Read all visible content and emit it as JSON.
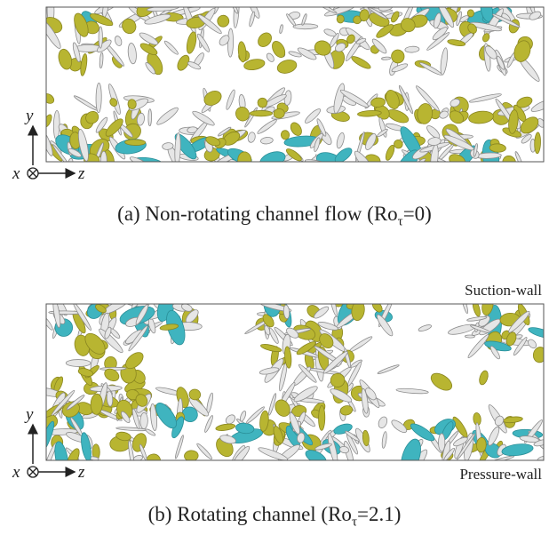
{
  "panels": [
    {
      "caption": {
        "prefix": "(a) Non-rotating channel flow (Ro",
        "subscript": "τ",
        "suffix": "=0)"
      },
      "axes": {
        "y": "y",
        "x": "x",
        "z": "z"
      }
    },
    {
      "caption": {
        "prefix": "(b) Rotating channel (Ro",
        "subscript": "τ",
        "suffix": "=2.1)"
      },
      "top_label": "Suction-wall",
      "bottom_label": "Pressure-wall",
      "axes": {
        "y": "y",
        "x": "x",
        "z": "z"
      }
    }
  ]
}
